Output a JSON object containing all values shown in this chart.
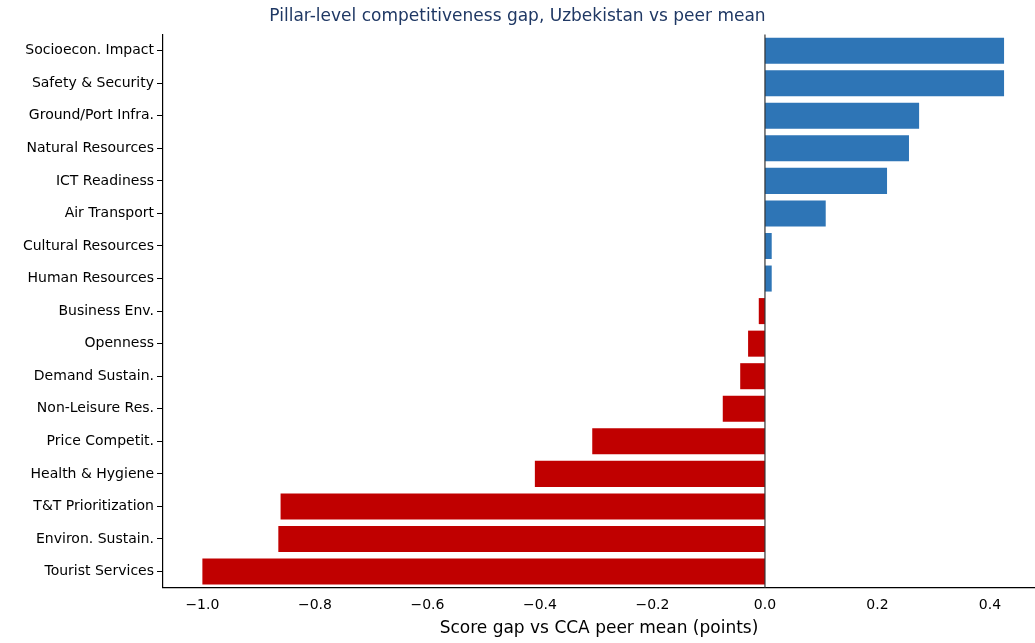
{
  "chart_data": {
    "type": "bar",
    "orientation": "horizontal",
    "title": "Pillar-level competitiveness gap, Uzbekistan vs peer mean",
    "xlabel": "Score gap vs CCA peer mean (points)",
    "categories": [
      "Socioecon. Impact",
      "Safety & Security",
      "Ground/Port Infra.",
      "Natural Resources",
      "ICT Readiness",
      "Air Transport",
      "Cultural Resources",
      "Human Resources",
      "Business Env.",
      "Openness",
      "Demand Sustain.",
      "Non-Leisure Res.",
      "Price Competit.",
      "Health & Hygiene",
      "T&T Prioritization",
      "Environ. Sustain.",
      "Tourist Services"
    ],
    "values": [
      0.425,
      0.425,
      0.274,
      0.256,
      0.217,
      0.108,
      0.012,
      0.012,
      -0.011,
      -0.03,
      -0.044,
      -0.075,
      -0.307,
      -0.409,
      -0.861,
      -0.865,
      -1.0
    ],
    "colors": [
      "#2e75b6",
      "#2e75b6",
      "#2e75b6",
      "#2e75b6",
      "#2e75b6",
      "#2e75b6",
      "#2e75b6",
      "#2e75b6",
      "#c00000",
      "#c00000",
      "#c00000",
      "#c00000",
      "#c00000",
      "#c00000",
      "#c00000",
      "#c00000",
      "#c00000"
    ],
    "xlim": [
      -1.07,
      0.48
    ],
    "xticks": [
      {
        "value": -1.0,
        "label": "−1.0"
      },
      {
        "value": -0.8,
        "label": "−0.8"
      },
      {
        "value": -0.6,
        "label": "−0.6"
      },
      {
        "value": -0.4,
        "label": "−0.4"
      },
      {
        "value": -0.2,
        "label": "−0.2"
      },
      {
        "value": 0,
        "label": "0.0"
      },
      {
        "value": 0.2,
        "label": "0.2"
      },
      {
        "value": 0.4,
        "label": "0.4"
      }
    ],
    "ref_lines": [
      {
        "axis": "x",
        "value": 0,
        "color": "#333333"
      }
    ],
    "grid": false,
    "legend": false
  }
}
